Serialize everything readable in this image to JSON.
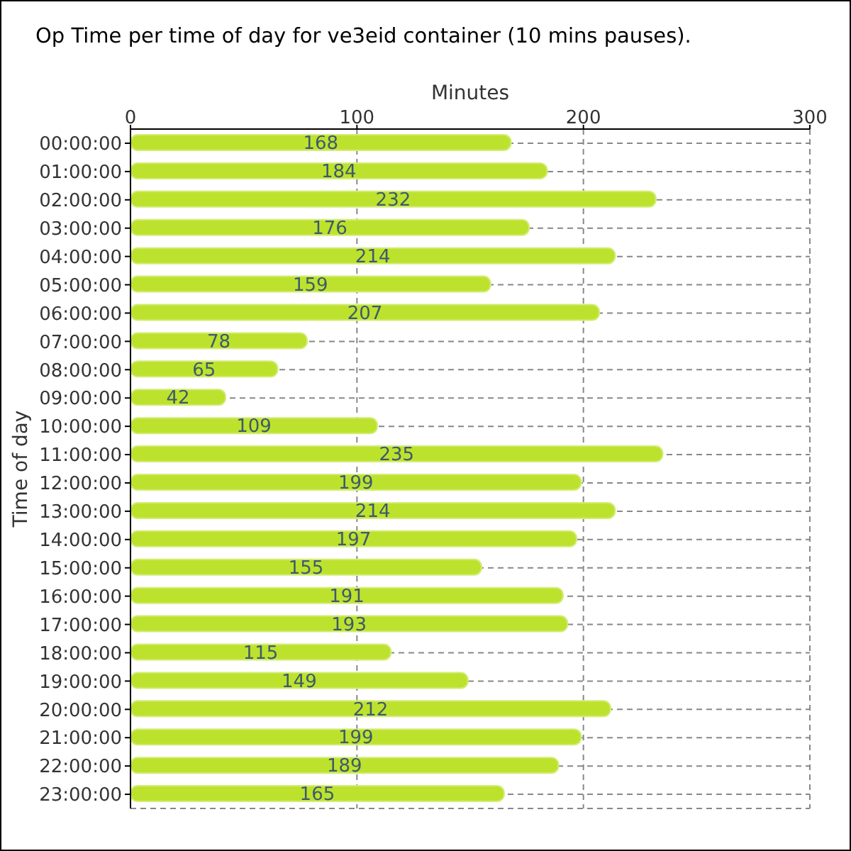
{
  "chart_data": {
    "type": "bar",
    "orientation": "horizontal",
    "title": "Op Time per time of day for ve3eid container (10 mins pauses).",
    "xlabel": "Minutes",
    "ylabel": "Time of day",
    "categories": [
      "00:00:00",
      "01:00:00",
      "02:00:00",
      "03:00:00",
      "04:00:00",
      "05:00:00",
      "06:00:00",
      "07:00:00",
      "08:00:00",
      "09:00:00",
      "10:00:00",
      "11:00:00",
      "12:00:00",
      "13:00:00",
      "14:00:00",
      "15:00:00",
      "16:00:00",
      "17:00:00",
      "18:00:00",
      "19:00:00",
      "20:00:00",
      "21:00:00",
      "22:00:00",
      "23:00:00"
    ],
    "values": [
      168,
      184,
      232,
      176,
      214,
      159,
      207,
      78,
      65,
      42,
      109,
      235,
      199,
      214,
      197,
      155,
      191,
      193,
      115,
      149,
      212,
      199,
      189,
      165
    ],
    "color": "#bde22e",
    "xlim": [
      0,
      300
    ],
    "xticks": [
      0,
      100,
      200,
      300
    ],
    "grid": true,
    "data_labels": true
  }
}
